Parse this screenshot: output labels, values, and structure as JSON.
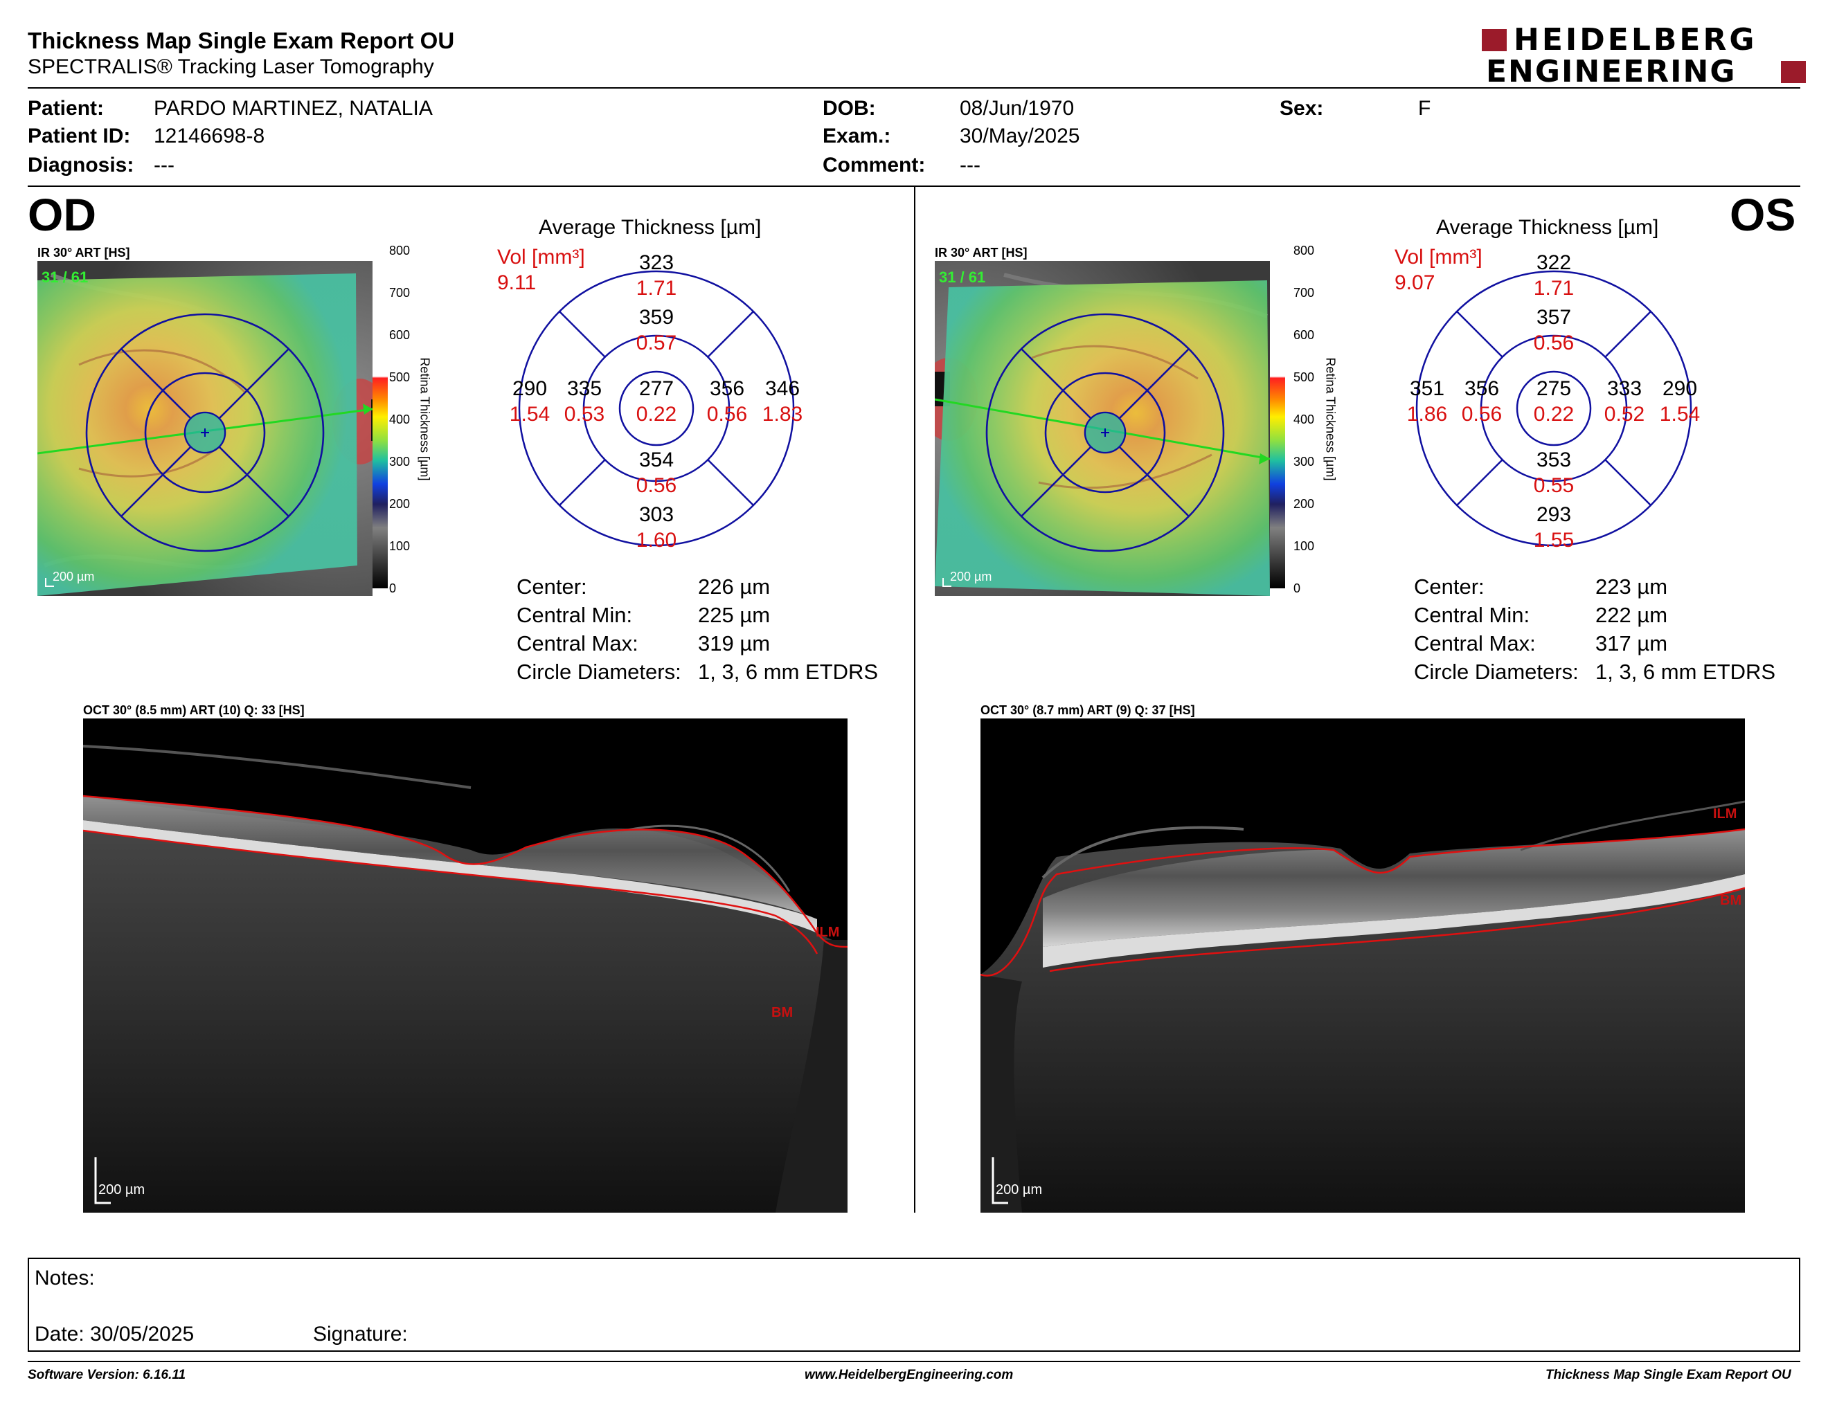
{
  "header": {
    "title": "Thickness Map Single Exam Report OU",
    "subtitle": "SPECTRALIS® Tracking Laser Tomography",
    "logo_line1": "HEIDELBERG",
    "logo_line2": "ENGINEERING",
    "logo_color": "#9b1b2a"
  },
  "patient": {
    "patient_label": "Patient:",
    "patient_value": "PARDO MARTINEZ, NATALIA",
    "id_label": "Patient ID:",
    "id_value": "12146698-8",
    "diagnosis_label": "Diagnosis:",
    "diagnosis_value": "---",
    "dob_label": "DOB:",
    "dob_value": "08/Jun/1970",
    "exam_label": "Exam.:",
    "exam_value": "30/May/2025",
    "comment_label": "Comment:",
    "comment_value": "---",
    "sex_label": "Sex:",
    "sex_value": "F"
  },
  "od": {
    "eye": "OD",
    "ir_header": "IR 30° ART [HS]",
    "frame": "31 / 61",
    "scale": "200 µm",
    "grid_title": "Average Thickness [µm]",
    "vol_label": "Vol [mm³]",
    "vol_value": "9.11",
    "sectors": {
      "center": {
        "t": "277",
        "v": "0.22"
      },
      "inner_sup": {
        "t": "359",
        "v": "0.57"
      },
      "inner_inf": {
        "t": "354",
        "v": "0.56"
      },
      "inner_left": {
        "t": "335",
        "v": "0.53"
      },
      "inner_right": {
        "t": "356",
        "v": "0.56"
      },
      "outer_sup": {
        "t": "323",
        "v": "1.71"
      },
      "outer_inf": {
        "t": "303",
        "v": "1.60"
      },
      "outer_left": {
        "t": "290",
        "v": "1.54"
      },
      "outer_right": {
        "t": "346",
        "v": "1.83"
      }
    },
    "stats": [
      {
        "label": "Center:",
        "value": "226 µm"
      },
      {
        "label": "Central Min:",
        "value": "225 µm"
      },
      {
        "label": "Central Max:",
        "value": "319 µm"
      },
      {
        "label": "Circle Diameters:",
        "value": "1, 3, 6 mm ETDRS"
      }
    ],
    "oct_header": "OCT 30° (8.5 mm) ART (10) Q: 33 [HS]",
    "oct_scale": "200 µm",
    "ilm": "ILM",
    "bm": "BM"
  },
  "os": {
    "eye": "OS",
    "ir_header": "IR 30° ART [HS]",
    "frame": "31 / 61",
    "scale": "200 µm",
    "grid_title": "Average Thickness [µm]",
    "vol_label": "Vol [mm³]",
    "vol_value": "9.07",
    "sectors": {
      "center": {
        "t": "275",
        "v": "0.22"
      },
      "inner_sup": {
        "t": "357",
        "v": "0.56"
      },
      "inner_inf": {
        "t": "353",
        "v": "0.55"
      },
      "inner_left": {
        "t": "356",
        "v": "0.56"
      },
      "inner_right": {
        "t": "333",
        "v": "0.52"
      },
      "outer_sup": {
        "t": "322",
        "v": "1.71"
      },
      "outer_inf": {
        "t": "293",
        "v": "1.55"
      },
      "outer_left": {
        "t": "351",
        "v": "1.86"
      },
      "outer_right": {
        "t": "290",
        "v": "1.54"
      }
    },
    "stats": [
      {
        "label": "Center:",
        "value": "223 µm"
      },
      {
        "label": "Central Min:",
        "value": "222 µm"
      },
      {
        "label": "Central Max:",
        "value": "317 µm"
      },
      {
        "label": "Circle Diameters:",
        "value": "1, 3, 6 mm ETDRS"
      }
    ],
    "oct_header": "OCT 30° (8.7 mm) ART (9) Q: 37 [HS]",
    "oct_scale": "200 µm",
    "ilm": "ILM",
    "bm": "BM"
  },
  "colorbar": {
    "ticks": [
      "800",
      "700",
      "600",
      "500",
      "400",
      "300",
      "200",
      "100",
      "0"
    ],
    "label": "Retina Thickness [µm]"
  },
  "notes": {
    "notes_label": "Notes:",
    "date_label": "Date: 30/05/2025",
    "signature_label": "Signature:"
  },
  "footer": {
    "software": "Software Version: 6.16.11",
    "website": "www.HeidelbergEngineering.com",
    "report": "Thickness Map Single Exam Report OU"
  }
}
